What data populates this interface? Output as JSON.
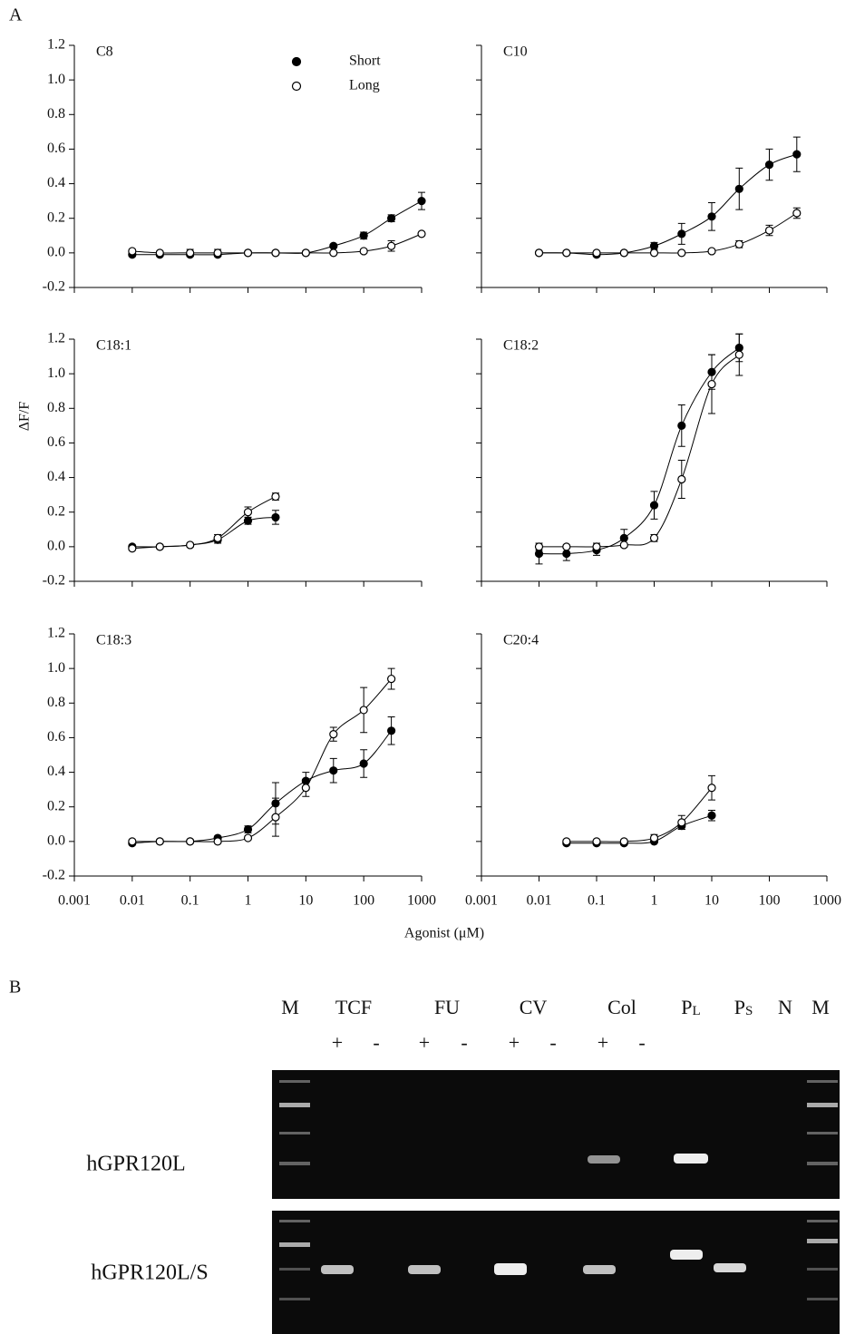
{
  "panel_a": "A",
  "x_label": "Agonist (μM)",
  "chart_data": [
    {
      "type": "scatter",
      "title": "C8",
      "xlog": true,
      "xlim": [
        0.001,
        1000
      ],
      "xticks": [
        0.001,
        0.01,
        0.1,
        1,
        10,
        100,
        1000
      ],
      "ylim": [
        -0.2,
        1.2
      ],
      "yticks": [
        -0.2,
        {
          "value": 0,
          "label": "0.0"
        },
        0.2,
        0.4,
        0.6,
        0.8,
        {
          "value": 1,
          "label": "1.0"
        },
        1.2
      ],
      "legend": "top",
      "series": [
        {
          "name": "Short",
          "color": "#000000",
          "marker_fill": "#000000",
          "x": [
            0.01,
            0.03,
            0.1,
            0.3,
            1,
            3,
            10,
            30,
            100,
            300,
            1000
          ],
          "values": [
            -0.01,
            -0.01,
            -0.01,
            -0.01,
            0,
            0,
            0,
            0.04,
            0.1,
            0.2,
            0.3
          ],
          "errors": [
            0.01,
            0.01,
            0.01,
            0.01,
            0.01,
            0.01,
            0.01,
            0.01,
            0.02,
            0.02,
            0.05
          ]
        },
        {
          "name": "Long",
          "color": "#000000",
          "marker_fill": "#ffffff",
          "x": [
            0.01,
            0.03,
            0.1,
            0.3,
            1,
            3,
            10,
            30,
            100,
            300,
            1000
          ],
          "values": [
            0.01,
            0,
            0,
            0,
            0,
            0,
            0,
            0,
            0.01,
            0.04,
            0.11
          ],
          "errors": [
            0.01,
            0.01,
            0.02,
            0.02,
            0.01,
            0.01,
            0.01,
            0.01,
            0.01,
            0.03,
            0.01
          ]
        }
      ]
    },
    {
      "type": "scatter",
      "title": "C10",
      "xlog": true,
      "xlim": [
        0.001,
        1000
      ],
      "xticks": [
        0.001,
        0.01,
        0.1,
        1,
        10,
        100,
        1000
      ],
      "ylim": [
        -0.2,
        1.2
      ],
      "yticks": [
        -0.2,
        0,
        0.2,
        0.4,
        0.6,
        0.8,
        1,
        1.2
      ],
      "series": [
        {
          "color": "#000000",
          "marker_fill": "#000000",
          "x": [
            0.01,
            0.03,
            0.1,
            0.3,
            1,
            3,
            10,
            30,
            100,
            300
          ],
          "values": [
            0,
            0,
            -0.01,
            0,
            0.04,
            0.11,
            0.21,
            0.37,
            0.51,
            0.57
          ],
          "errors": [
            0.01,
            0.01,
            0.01,
            0.01,
            0.02,
            0.06,
            0.08,
            0.12,
            0.09,
            0.1
          ]
        },
        {
          "color": "#000000",
          "marker_fill": "#ffffff",
          "x": [
            0.01,
            0.03,
            0.1,
            0.3,
            1,
            3,
            10,
            30,
            100,
            300
          ],
          "values": [
            0,
            0,
            0,
            0,
            0,
            0,
            0.01,
            0.05,
            0.13,
            0.23
          ],
          "errors": [
            0.01,
            0.01,
            0.01,
            0.01,
            0.01,
            0.01,
            0.01,
            0.02,
            0.03,
            0.03
          ]
        }
      ]
    },
    {
      "type": "scatter",
      "title": "C18:1",
      "ylabel": "ΔF/F",
      "xlog": true,
      "xlim": [
        0.001,
        1000
      ],
      "xticks": [
        0.001,
        0.01,
        0.1,
        1,
        10,
        100,
        1000
      ],
      "ylim": [
        -0.2,
        1.2
      ],
      "yticks": [
        -0.2,
        {
          "value": 0,
          "label": "0.0"
        },
        0.2,
        0.4,
        0.6,
        0.8,
        {
          "value": 1,
          "label": "1.0"
        },
        1.2
      ],
      "series": [
        {
          "color": "#000000",
          "marker_fill": "#000000",
          "x": [
            0.01,
            0.03,
            0.1,
            0.3,
            1,
            3
          ],
          "values": [
            0,
            0,
            0.01,
            0.04,
            0.15,
            0.17
          ],
          "errors": [
            0.01,
            0.01,
            0.01,
            0.02,
            0.02,
            0.04
          ]
        },
        {
          "color": "#000000",
          "marker_fill": "#ffffff",
          "x": [
            0.01,
            0.03,
            0.1,
            0.3,
            1,
            3
          ],
          "values": [
            -0.01,
            0,
            0.01,
            0.05,
            0.2,
            0.29
          ],
          "errors": [
            0.01,
            0.01,
            0.01,
            0.02,
            0.03,
            0.02
          ]
        }
      ]
    },
    {
      "type": "scatter",
      "title": "C18:2",
      "xlog": true,
      "xlim": [
        0.001,
        1000
      ],
      "xticks": [
        0.001,
        0.01,
        0.1,
        1,
        10,
        100,
        1000
      ],
      "ylim": [
        -0.2,
        1.2
      ],
      "yticks": [
        -0.2,
        0,
        0.2,
        0.4,
        0.6,
        0.8,
        1,
        1.2
      ],
      "series": [
        {
          "color": "#000000",
          "marker_fill": "#000000",
          "x": [
            0.01,
            0.03,
            0.1,
            0.3,
            1,
            3,
            10,
            30
          ],
          "values": [
            -0.04,
            -0.04,
            -0.02,
            0.05,
            0.24,
            0.7,
            1.01,
            1.15
          ],
          "errors": [
            0.06,
            0.04,
            0.03,
            0.05,
            0.08,
            0.12,
            0.1,
            0.08
          ]
        },
        {
          "color": "#000000",
          "marker_fill": "#ffffff",
          "x": [
            0.01,
            0.03,
            0.1,
            0.3,
            1,
            3,
            10,
            30
          ],
          "values": [
            0,
            0,
            0,
            0.01,
            0.05,
            0.39,
            0.94,
            1.11
          ],
          "errors": [
            0.02,
            0.01,
            0.02,
            0.01,
            0.02,
            0.11,
            0.17,
            0.12
          ]
        }
      ]
    },
    {
      "type": "scatter",
      "title": "C18:3",
      "xlog": true,
      "xlim": [
        0.001,
        1000
      ],
      "xticks": [
        0.001,
        0.01,
        0.1,
        1,
        10,
        100,
        1000
      ],
      "ylim": [
        -0.2,
        1.2
      ],
      "yticks": [
        -0.2,
        {
          "value": 0,
          "label": "0.0"
        },
        0.2,
        0.4,
        0.6,
        0.8,
        {
          "value": 1,
          "label": "1.0"
        },
        1.2
      ],
      "series": [
        {
          "color": "#000000",
          "marker_fill": "#000000",
          "x": [
            0.01,
            0.03,
            0.1,
            0.3,
            1,
            3,
            10,
            30,
            100,
            300
          ],
          "values": [
            -0.01,
            0,
            0,
            0.02,
            0.07,
            0.22,
            0.35,
            0.41,
            0.45,
            0.64
          ],
          "errors": [
            0.01,
            0.01,
            0.01,
            0.01,
            0.02,
            0.12,
            0.05,
            0.07,
            0.08,
            0.08
          ]
        },
        {
          "color": "#000000",
          "marker_fill": "#ffffff",
          "x": [
            0.01,
            0.03,
            0.1,
            0.3,
            1,
            3,
            10,
            30,
            100,
            300
          ],
          "values": [
            0,
            0,
            0,
            0,
            0.02,
            0.14,
            0.31,
            0.62,
            0.76,
            0.94
          ],
          "errors": [
            0.01,
            0.01,
            0.01,
            0.01,
            0.01,
            0.11,
            0.05,
            0.04,
            0.13,
            0.06
          ]
        }
      ]
    },
    {
      "type": "scatter",
      "title": "C20:4",
      "xlog": true,
      "xlim": [
        0.001,
        1000
      ],
      "xticks": [
        0.001,
        0.01,
        0.1,
        1,
        10,
        100,
        1000
      ],
      "ylim": [
        -0.2,
        1.2
      ],
      "yticks": [
        -0.2,
        0,
        0.2,
        0.4,
        0.6,
        0.8,
        1,
        1.2
      ],
      "series": [
        {
          "color": "#000000",
          "marker_fill": "#000000",
          "x": [
            0.03,
            0.1,
            0.3,
            1,
            3,
            10
          ],
          "values": [
            -0.01,
            -0.01,
            -0.01,
            0,
            0.09,
            0.15
          ],
          "errors": [
            0.01,
            0.01,
            0.01,
            0.01,
            0.02,
            0.03
          ]
        },
        {
          "color": "#000000",
          "marker_fill": "#ffffff",
          "x": [
            0.03,
            0.1,
            0.3,
            1,
            3,
            10
          ],
          "values": [
            0,
            0,
            0,
            0.02,
            0.11,
            0.31
          ],
          "errors": [
            0.01,
            0.01,
            0.01,
            0.02,
            0.04,
            0.07
          ]
        }
      ]
    }
  ],
  "gel": {
    "panel": "B",
    "lanes": [
      {
        "main": "M"
      },
      {
        "main": "TCF"
      },
      {
        "main": "FU"
      },
      {
        "main": "CV"
      },
      {
        "main": "Col"
      },
      {
        "main": "P",
        "sub": "L"
      },
      {
        "main": "P",
        "sub": "S"
      },
      {
        "main": "N"
      },
      {
        "main": "M"
      }
    ],
    "signs": [
      "+",
      "-",
      "+",
      "-",
      "+",
      "-",
      "+",
      "-"
    ],
    "rows": [
      "hGPR120L",
      "hGPR120L/S"
    ]
  }
}
